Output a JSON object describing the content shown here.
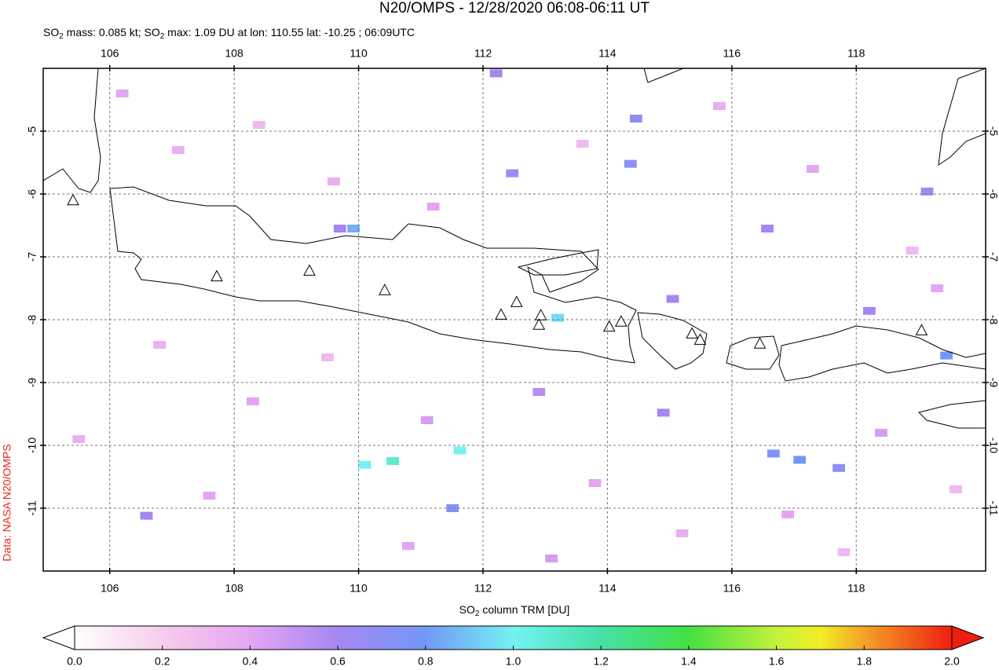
{
  "title": "N20/OMPS - 12/28/2020 06:08-06:11 UT",
  "subtitle": [
    "SO",
    "2",
    " mass: 0.085 kt; SO",
    "2",
    " max: 1.09 DU at lon: 110.55 lat: -10.25 ; 06:09UTC"
  ],
  "credit": "Data: NASA N20/OMPS",
  "lon_range": [
    104.93,
    120.08
  ],
  "lat_range": [
    -12,
    -4
  ],
  "lon_ticks": [
    106,
    108,
    110,
    112,
    114,
    116,
    118
  ],
  "lat_ticks": [
    -5,
    -6,
    -7,
    -8,
    -9,
    -10,
    -11
  ],
  "grid": true,
  "volcanoes": [
    [
      105.41,
      -6.11
    ],
    [
      107.72,
      -7.32
    ],
    [
      109.21,
      -7.23
    ],
    [
      110.42,
      -7.54
    ],
    [
      112.29,
      -7.93
    ],
    [
      112.54,
      -7.73
    ],
    [
      112.93,
      -7.94
    ],
    [
      112.9,
      -8.09
    ],
    [
      114.03,
      -8.12
    ],
    [
      114.22,
      -8.04
    ],
    [
      115.36,
      -8.23
    ],
    [
      115.49,
      -8.33
    ],
    [
      116.45,
      -8.39
    ],
    [
      119.05,
      -8.18
    ]
  ],
  "cells": [
    [
      110.1,
      -10.31,
      1.0
    ],
    [
      110.55,
      -10.25,
      1.09
    ],
    [
      111.63,
      -10.08,
      1.0
    ],
    [
      113.2,
      -7.97,
      0.95
    ],
    [
      109.92,
      -6.55,
      0.85
    ],
    [
      119.45,
      -8.57,
      0.8
    ],
    [
      114.46,
      -4.8,
      0.7
    ],
    [
      114.37,
      -5.52,
      0.7
    ],
    [
      112.47,
      -5.67,
      0.6
    ],
    [
      119.14,
      -5.96,
      0.6
    ],
    [
      114.9,
      -9.48,
      0.6
    ],
    [
      116.67,
      -10.13,
      0.75
    ],
    [
      117.09,
      -10.23,
      0.8
    ],
    [
      117.72,
      -10.36,
      0.7
    ],
    [
      116.57,
      -6.55,
      0.6
    ],
    [
      115.05,
      -7.67,
      0.6
    ],
    [
      118.21,
      -7.86,
      0.6
    ],
    [
      111.51,
      -11.0,
      0.75
    ],
    [
      106.59,
      -11.12,
      0.6
    ],
    [
      112.21,
      -4.08,
      0.6
    ],
    [
      109.7,
      -6.55,
      0.6
    ],
    [
      112.9,
      -9.15,
      0.55
    ],
    [
      106.2,
      -4.4,
      0.4
    ],
    [
      107.1,
      -5.3,
      0.35
    ],
    [
      108.4,
      -4.9,
      0.3
    ],
    [
      109.6,
      -5.8,
      0.35
    ],
    [
      111.2,
      -6.2,
      0.4
    ],
    [
      113.6,
      -5.2,
      0.3
    ],
    [
      115.8,
      -4.6,
      0.35
    ],
    [
      117.3,
      -5.6,
      0.4
    ],
    [
      118.9,
      -6.9,
      0.3
    ],
    [
      106.8,
      -8.4,
      0.35
    ],
    [
      108.3,
      -9.3,
      0.4
    ],
    [
      109.5,
      -8.6,
      0.3
    ],
    [
      111.1,
      -9.6,
      0.45
    ],
    [
      113.8,
      -10.6,
      0.4
    ],
    [
      115.2,
      -11.4,
      0.35
    ],
    [
      116.9,
      -11.1,
      0.4
    ],
    [
      118.4,
      -9.8,
      0.45
    ],
    [
      119.6,
      -10.7,
      0.3
    ],
    [
      107.6,
      -10.8,
      0.4
    ],
    [
      105.5,
      -9.9,
      0.35
    ],
    [
      110.8,
      -11.6,
      0.4
    ],
    [
      113.1,
      -11.8,
      0.45
    ],
    [
      117.8,
      -11.7,
      0.3
    ],
    [
      119.3,
      -7.5,
      0.4
    ]
  ],
  "colorbar": {
    "label": [
      "SO",
      "2",
      " column TRM [DU]"
    ],
    "range": [
      0,
      2
    ],
    "ticks": [
      {
        "value": 0,
        "label": "0.0"
      },
      0.2,
      0.4,
      0.6,
      0.8,
      {
        "value": 1,
        "label": "1.0"
      },
      1.2,
      1.4,
      1.6,
      1.8,
      {
        "value": 2,
        "label": "2.0"
      }
    ],
    "colors": [
      [
        0,
        "#ffffff"
      ],
      [
        0.2,
        "#f7cdec"
      ],
      [
        0.4,
        "#e4a6f2"
      ],
      [
        0.6,
        "#a587f2"
      ],
      [
        0.8,
        "#7397f7"
      ],
      [
        1.0,
        "#74f2f2"
      ],
      [
        1.2,
        "#45e0a6"
      ],
      [
        1.4,
        "#44e044"
      ],
      [
        1.6,
        "#c3f23c"
      ],
      [
        1.7,
        "#f2ee24"
      ],
      [
        1.8,
        "#f2a226"
      ],
      [
        2.0,
        "#f01e10"
      ]
    ]
  }
}
